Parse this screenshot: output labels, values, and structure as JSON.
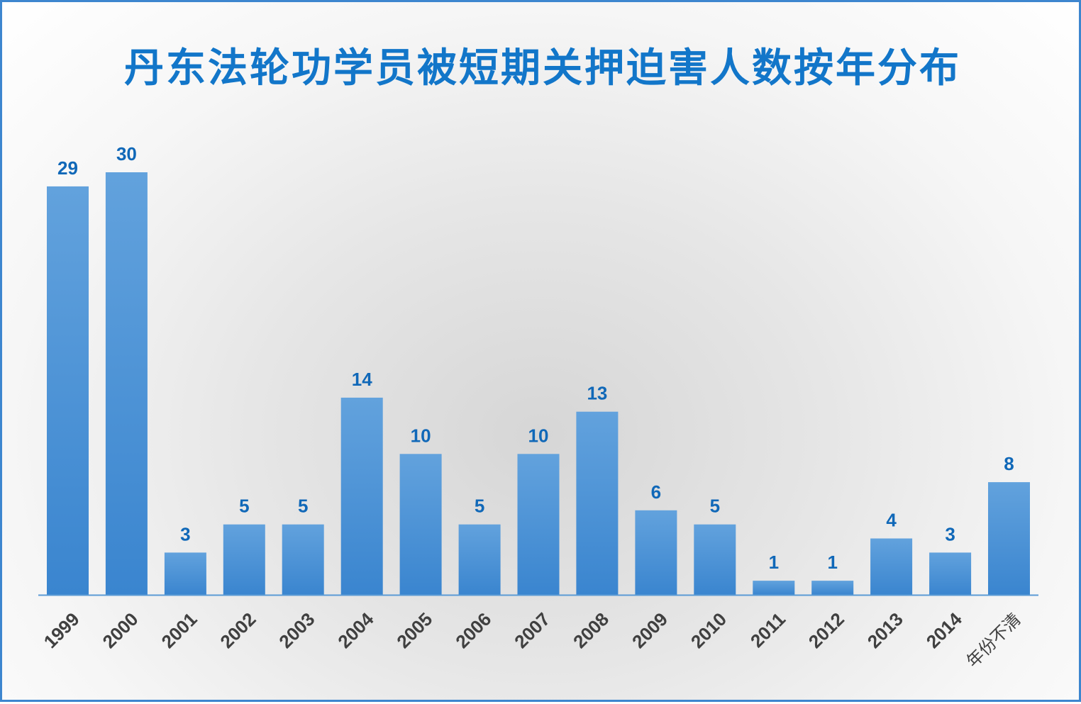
{
  "chart_data": {
    "type": "bar",
    "title": "丹东法轮功学员被短期关押迫害人数按年分布",
    "categories": [
      "1999",
      "2000",
      "2001",
      "2002",
      "2003",
      "2004",
      "2005",
      "2006",
      "2007",
      "2008",
      "2009",
      "2010",
      "2011",
      "2012",
      "2013",
      "2014",
      "年份不清"
    ],
    "values": [
      29,
      30,
      3,
      5,
      5,
      14,
      10,
      5,
      10,
      13,
      6,
      5,
      1,
      1,
      4,
      3,
      8
    ],
    "data_labels": [
      "29",
      "30",
      "3",
      "5",
      "5",
      "14",
      "10",
      "5",
      "10",
      "13",
      "6",
      "5",
      "1",
      "1",
      "4",
      "3",
      "8"
    ],
    "xlabel": "",
    "ylabel": "",
    "ylim": [
      0,
      30
    ],
    "grid": false,
    "legend": "none",
    "colors": {
      "bar_top": "#62a2dd",
      "bar_bottom": "#3a85cf",
      "label": "#1068b8",
      "axis": "#5b9bd5",
      "title": "#1276c9",
      "tick": "#404040"
    }
  }
}
